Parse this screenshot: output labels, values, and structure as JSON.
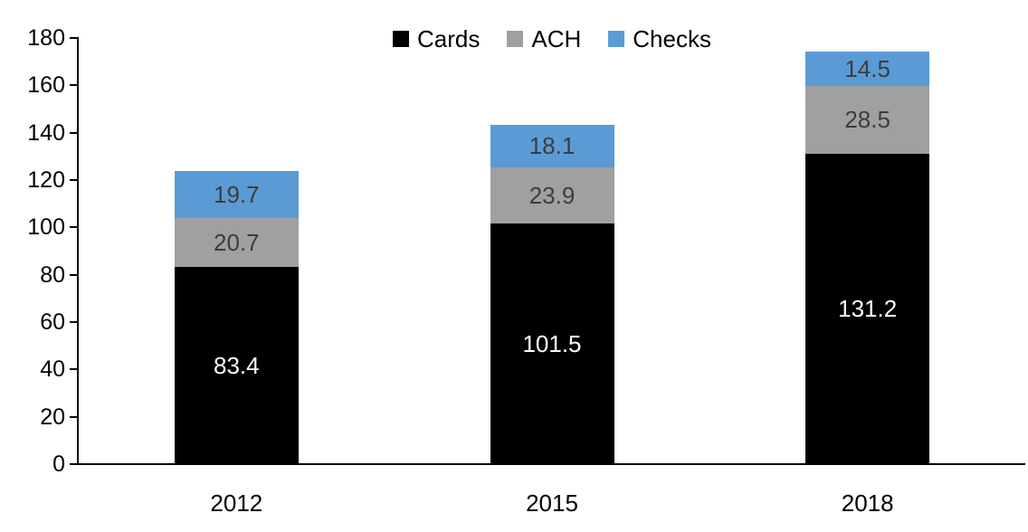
{
  "chart_data": {
    "type": "bar",
    "stacked": true,
    "title": "",
    "xlabel": "",
    "ylabel": "",
    "categories": [
      "2012",
      "2015",
      "2018"
    ],
    "series": [
      {
        "name": "Cards",
        "color": "#000000",
        "label_color": "#ffffff",
        "values": [
          83.4,
          101.5,
          131.2
        ]
      },
      {
        "name": "ACH",
        "color": "#a0a0a0",
        "label_color": "#3d3d3d",
        "values": [
          20.7,
          23.9,
          28.5
        ]
      },
      {
        "name": "Checks",
        "color": "#5b9bd5",
        "label_color": "#3d3d3d",
        "values": [
          19.7,
          18.1,
          14.5
        ]
      }
    ],
    "totals": [
      123.8,
      143.5,
      174.2
    ],
    "ylim": [
      0,
      180
    ],
    "ytick_step": 20,
    "yticks": [
      0,
      20,
      40,
      60,
      80,
      100,
      120,
      140,
      160,
      180
    ],
    "grid": false,
    "legend_position": "top-center",
    "legend_order": [
      "Cards",
      "ACH",
      "Checks"
    ],
    "axis_color": "#000000"
  }
}
